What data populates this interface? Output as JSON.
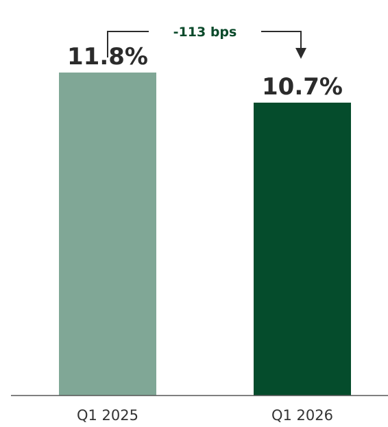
{
  "chart_data": {
    "type": "bar",
    "categories": [
      "Q1 2025",
      "Q1 2026"
    ],
    "values": [
      11.8,
      10.7
    ],
    "value_labels": [
      "11.8%",
      "10.7%"
    ],
    "unit": "%",
    "ylim": [
      0,
      12.5
    ],
    "grid": false,
    "legend": "none",
    "colors": [
      "#80a796",
      "#054c2c"
    ],
    "annotation": {
      "text": "-113 bps",
      "from": "Q1 2025",
      "to": "Q1 2026",
      "color": "#0b4a2b"
    }
  }
}
